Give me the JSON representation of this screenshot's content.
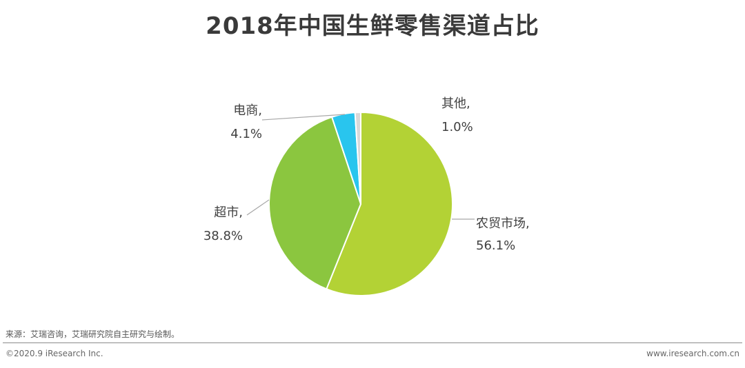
{
  "title": "2018年中国生鲜零售渠道占比",
  "chart_data": {
    "type": "pie",
    "title": "2018年中国生鲜零售渠道占比",
    "unit": "%",
    "start_angle_deg": -90,
    "direction": "clockwise",
    "slices": [
      {
        "label": "农贸市场,",
        "value": 56.1,
        "value_label": "56.1%",
        "color": "#b3d235"
      },
      {
        "label": "超市,",
        "value": 38.8,
        "value_label": "38.8%",
        "color": "#8bc63f"
      },
      {
        "label": "电商,",
        "value": 4.1,
        "value_label": "4.1%",
        "color": "#29c5ee"
      },
      {
        "label": "其他,",
        "value": 1.0,
        "value_label": "1.0%",
        "color": "#d9d9d9"
      }
    ]
  },
  "footer": {
    "source": "来源：艾瑞咨询，艾瑞研究院自主研究与绘制。",
    "copyright": "©2020.9 iResearch Inc.",
    "website": "www.iresearch.com.cn"
  }
}
